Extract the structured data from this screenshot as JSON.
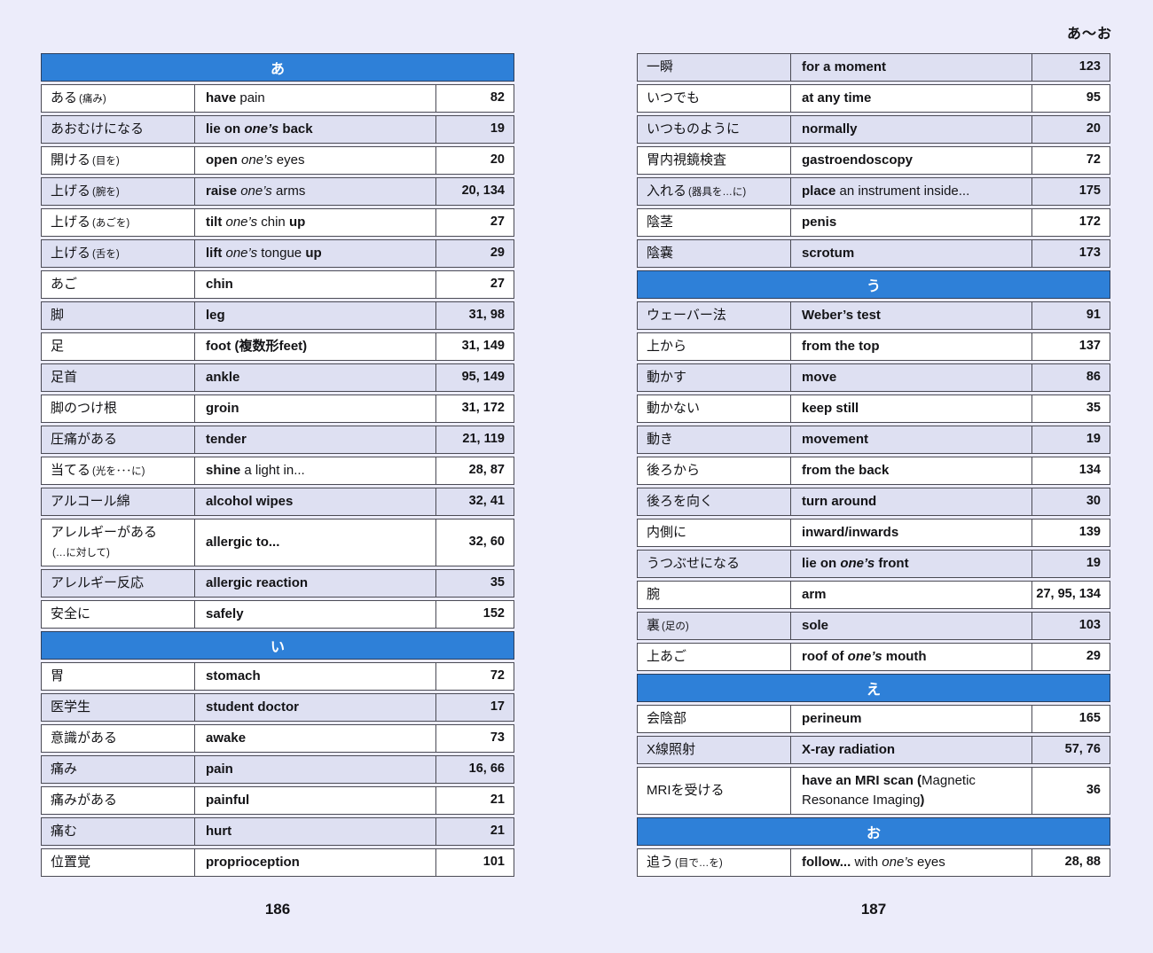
{
  "corner_label": "あ〜お",
  "colors": {
    "page_bg": "#ececfa",
    "row_bg": "#ffffff",
    "row_alt_bg": "#dee0f2",
    "section_bg": "#2e80d8",
    "section_text": "#ffffff",
    "border": "#4b4b55",
    "text": "#131316"
  },
  "left_page": {
    "page_number": "186",
    "rows": [
      {
        "section": "あ"
      },
      {
        "jp": [
          {
            "t": "ある"
          },
          {
            "t": "(痛み)",
            "s": 1
          }
        ],
        "en": [
          {
            "t": "have",
            "b": 1
          },
          {
            "t": " pain"
          }
        ],
        "pg": "82"
      },
      {
        "jp": [
          {
            "t": "あおむけになる"
          }
        ],
        "en": [
          {
            "t": "lie on ",
            "b": 1
          },
          {
            "t": "one’s",
            "b": 1,
            "i": 1
          },
          {
            "t": " back",
            "b": 1
          }
        ],
        "pg": "19"
      },
      {
        "jp": [
          {
            "t": "開ける"
          },
          {
            "t": "(目を)",
            "s": 1
          }
        ],
        "en": [
          {
            "t": "open",
            "b": 1
          },
          {
            "t": " "
          },
          {
            "t": "one’s",
            "i": 1
          },
          {
            "t": " eyes"
          }
        ],
        "pg": "20"
      },
      {
        "jp": [
          {
            "t": "上げる"
          },
          {
            "t": "(腕を)",
            "s": 1
          }
        ],
        "en": [
          {
            "t": "raise",
            "b": 1
          },
          {
            "t": " "
          },
          {
            "t": "one’s",
            "i": 1
          },
          {
            "t": " arms"
          }
        ],
        "pg": "20, 134"
      },
      {
        "jp": [
          {
            "t": "上げる"
          },
          {
            "t": "(あごを)",
            "s": 1
          }
        ],
        "en": [
          {
            "t": "tilt",
            "b": 1
          },
          {
            "t": " "
          },
          {
            "t": "one’s",
            "i": 1
          },
          {
            "t": " chin "
          },
          {
            "t": "up",
            "b": 1
          }
        ],
        "pg": "27"
      },
      {
        "jp": [
          {
            "t": "上げる"
          },
          {
            "t": "(舌を)",
            "s": 1
          }
        ],
        "en": [
          {
            "t": "lift",
            "b": 1
          },
          {
            "t": " "
          },
          {
            "t": "one’s",
            "i": 1
          },
          {
            "t": " tongue "
          },
          {
            "t": "up",
            "b": 1
          }
        ],
        "pg": "29"
      },
      {
        "jp": [
          {
            "t": "あご"
          }
        ],
        "en": [
          {
            "t": "chin",
            "b": 1
          }
        ],
        "pg": "27"
      },
      {
        "jp": [
          {
            "t": "脚"
          }
        ],
        "en": [
          {
            "t": "leg",
            "b": 1
          }
        ],
        "pg": "31, 98"
      },
      {
        "jp": [
          {
            "t": "足"
          }
        ],
        "en": [
          {
            "t": "foot (複数形feet)",
            "b": 1
          }
        ],
        "pg": "31, 149"
      },
      {
        "jp": [
          {
            "t": "足首"
          }
        ],
        "en": [
          {
            "t": "ankle",
            "b": 1
          }
        ],
        "pg": "95, 149"
      },
      {
        "jp": [
          {
            "t": "脚のつけ根"
          }
        ],
        "en": [
          {
            "t": "groin",
            "b": 1
          }
        ],
        "pg": "31, 172"
      },
      {
        "jp": [
          {
            "t": "圧痛がある"
          }
        ],
        "en": [
          {
            "t": "tender",
            "b": 1
          }
        ],
        "pg": "21, 119"
      },
      {
        "jp": [
          {
            "t": "当てる"
          },
          {
            "t": "(光を･･･に)",
            "s": 1
          }
        ],
        "en": [
          {
            "t": "shine",
            "b": 1
          },
          {
            "t": " a light in..."
          }
        ],
        "pg": "28, 87"
      },
      {
        "jp": [
          {
            "t": "アルコール綿"
          }
        ],
        "en": [
          {
            "t": "alcohol wipes",
            "b": 1
          }
        ],
        "pg": "32, 41"
      },
      {
        "jp": [
          {
            "t": "アレルギーがある"
          },
          {
            "t": "(…に対して)",
            "s": 1,
            "nl": 1
          }
        ],
        "en": [
          {
            "t": "allergic to...",
            "b": 1
          }
        ],
        "pg": "32, 60"
      },
      {
        "jp": [
          {
            "t": "アレルギー反応"
          }
        ],
        "en": [
          {
            "t": "allergic reaction",
            "b": 1
          }
        ],
        "pg": "35"
      },
      {
        "jp": [
          {
            "t": "安全に"
          }
        ],
        "en": [
          {
            "t": "safely",
            "b": 1
          }
        ],
        "pg": "152"
      },
      {
        "section": "い"
      },
      {
        "jp": [
          {
            "t": "胃"
          }
        ],
        "en": [
          {
            "t": "stomach",
            "b": 1
          }
        ],
        "pg": "72"
      },
      {
        "jp": [
          {
            "t": "医学生"
          }
        ],
        "en": [
          {
            "t": "student doctor",
            "b": 1
          }
        ],
        "pg": "17"
      },
      {
        "jp": [
          {
            "t": "意識がある"
          }
        ],
        "en": [
          {
            "t": "awake",
            "b": 1
          }
        ],
        "pg": "73"
      },
      {
        "jp": [
          {
            "t": "痛み"
          }
        ],
        "en": [
          {
            "t": "pain",
            "b": 1
          }
        ],
        "pg": "16, 66"
      },
      {
        "jp": [
          {
            "t": "痛みがある"
          }
        ],
        "en": [
          {
            "t": "painful",
            "b": 1
          }
        ],
        "pg": "21"
      },
      {
        "jp": [
          {
            "t": "痛む"
          }
        ],
        "en": [
          {
            "t": "hurt",
            "b": 1
          }
        ],
        "pg": "21"
      },
      {
        "jp": [
          {
            "t": "位置覚"
          }
        ],
        "en": [
          {
            "t": "proprioception",
            "b": 1
          }
        ],
        "pg": "101"
      }
    ]
  },
  "right_page": {
    "page_number": "187",
    "rows": [
      {
        "jp": [
          {
            "t": "一瞬"
          }
        ],
        "en": [
          {
            "t": "for a moment",
            "b": 1
          }
        ],
        "pg": "123"
      },
      {
        "jp": [
          {
            "t": "いつでも"
          }
        ],
        "en": [
          {
            "t": "at any time",
            "b": 1
          }
        ],
        "pg": "95"
      },
      {
        "jp": [
          {
            "t": "いつものように"
          }
        ],
        "en": [
          {
            "t": "normally",
            "b": 1
          }
        ],
        "pg": "20"
      },
      {
        "jp": [
          {
            "t": "胃内視鏡検査"
          }
        ],
        "en": [
          {
            "t": "gastroendoscopy",
            "b": 1
          }
        ],
        "pg": "72"
      },
      {
        "jp": [
          {
            "t": "入れる"
          },
          {
            "t": "(器具を…に)",
            "s": 1
          }
        ],
        "en": [
          {
            "t": "place",
            "b": 1
          },
          {
            "t": " an instrument inside..."
          }
        ],
        "pg": "175"
      },
      {
        "jp": [
          {
            "t": "陰茎"
          }
        ],
        "en": [
          {
            "t": "penis",
            "b": 1
          }
        ],
        "pg": "172"
      },
      {
        "jp": [
          {
            "t": "陰嚢"
          }
        ],
        "en": [
          {
            "t": "scrotum",
            "b": 1
          }
        ],
        "pg": "173"
      },
      {
        "section": "う"
      },
      {
        "jp": [
          {
            "t": "ウェーバー法"
          }
        ],
        "en": [
          {
            "t": "Weber’s test",
            "b": 1
          }
        ],
        "pg": "91"
      },
      {
        "jp": [
          {
            "t": "上から"
          }
        ],
        "en": [
          {
            "t": "from the top",
            "b": 1
          }
        ],
        "pg": "137"
      },
      {
        "jp": [
          {
            "t": "動かす"
          }
        ],
        "en": [
          {
            "t": "move",
            "b": 1
          }
        ],
        "pg": "86"
      },
      {
        "jp": [
          {
            "t": "動かない"
          }
        ],
        "en": [
          {
            "t": "keep still",
            "b": 1
          }
        ],
        "pg": "35"
      },
      {
        "jp": [
          {
            "t": "動き"
          }
        ],
        "en": [
          {
            "t": "movement",
            "b": 1
          }
        ],
        "pg": "19"
      },
      {
        "jp": [
          {
            "t": "後ろから"
          }
        ],
        "en": [
          {
            "t": "from the back",
            "b": 1
          }
        ],
        "pg": "134"
      },
      {
        "jp": [
          {
            "t": "後ろを向く"
          }
        ],
        "en": [
          {
            "t": "turn around",
            "b": 1
          }
        ],
        "pg": "30"
      },
      {
        "jp": [
          {
            "t": "内側に"
          }
        ],
        "en": [
          {
            "t": "inward/inwards",
            "b": 1
          }
        ],
        "pg": "139"
      },
      {
        "jp": [
          {
            "t": "うつぶせになる"
          }
        ],
        "en": [
          {
            "t": "lie on ",
            "b": 1
          },
          {
            "t": "one’s",
            "b": 1,
            "i": 1
          },
          {
            "t": " front",
            "b": 1
          }
        ],
        "pg": "19"
      },
      {
        "jp": [
          {
            "t": "腕"
          }
        ],
        "en": [
          {
            "t": "arm",
            "b": 1
          }
        ],
        "pg": "27, 95, 134"
      },
      {
        "jp": [
          {
            "t": "裏"
          },
          {
            "t": "(足の)",
            "s": 1
          }
        ],
        "en": [
          {
            "t": "sole",
            "b": 1
          }
        ],
        "pg": "103"
      },
      {
        "jp": [
          {
            "t": "上あご"
          }
        ],
        "en": [
          {
            "t": "roof of ",
            "b": 1
          },
          {
            "t": "one’s",
            "b": 1,
            "i": 1
          },
          {
            "t": " mouth",
            "b": 1
          }
        ],
        "pg": "29"
      },
      {
        "section": "え"
      },
      {
        "jp": [
          {
            "t": "会陰部"
          }
        ],
        "en": [
          {
            "t": "perineum",
            "b": 1
          }
        ],
        "pg": "165"
      },
      {
        "jp": [
          {
            "t": "X線照射"
          }
        ],
        "en": [
          {
            "t": "X-ray radiation",
            "b": 1
          }
        ],
        "pg": "57, 76"
      },
      {
        "jp": [
          {
            "t": "MRIを受ける"
          }
        ],
        "en": [
          {
            "t": "have an MRI scan (",
            "b": 1
          },
          {
            "t": "Magnetic Resonance Imaging"
          },
          {
            "t": ")",
            "b": 1
          }
        ],
        "pg": "36"
      },
      {
        "section": "お"
      },
      {
        "jp": [
          {
            "t": "追う"
          },
          {
            "t": "(目で…を)",
            "s": 1
          }
        ],
        "en": [
          {
            "t": "follow...",
            "b": 1
          },
          {
            "t": " with "
          },
          {
            "t": "one’s",
            "i": 1
          },
          {
            "t": " eyes"
          }
        ],
        "pg": "28, 88"
      }
    ]
  }
}
